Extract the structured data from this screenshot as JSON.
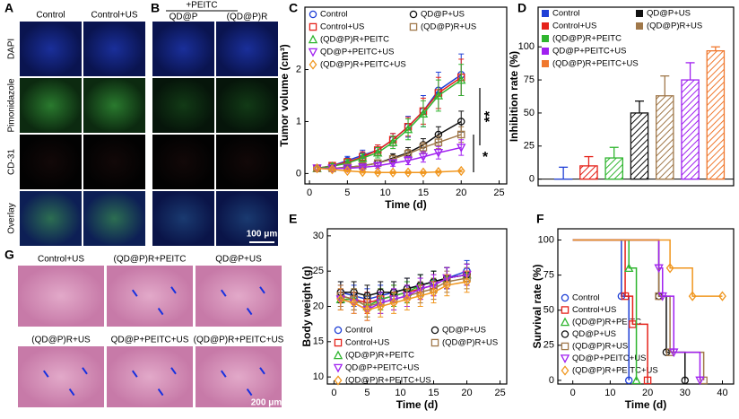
{
  "panel_labels": [
    "A",
    "B",
    "C",
    "D",
    "E",
    "F",
    "G"
  ],
  "panel_a": {
    "columns": [
      "Control",
      "Control+US"
    ],
    "rows": [
      "DAPI",
      "Pimonidazole",
      "CD-31",
      "Overlay"
    ]
  },
  "panel_b": {
    "header": "+PEITC",
    "columns": [
      "QD@P",
      "(QD@P)R"
    ],
    "scale_bar": "100 μm"
  },
  "panel_g": {
    "captions": [
      "Control+US",
      "(QD@P)R+PEITC",
      "QD@P+US",
      "(QD@P)R+US",
      "QD@P+PEITC+US",
      "(QD@P)R+PEITC+US"
    ],
    "scale_bar": "200 μm"
  },
  "chart_data": [
    {
      "type": "line",
      "xlabel": "Time (d)",
      "ylabel": "Tumor volume (cm³)",
      "x": [
        1,
        3,
        5,
        7,
        9,
        11,
        13,
        15,
        17,
        20
      ],
      "xlim": [
        -0.6,
        26
      ],
      "xticks": [
        0,
        5,
        10,
        15,
        20,
        25
      ],
      "ylim": [
        -0.2,
        3.2
      ],
      "yticks": [
        0,
        1,
        2
      ],
      "legend": "upper left",
      "annotations": [
        "**",
        "*"
      ],
      "series": [
        {
          "name": "Control",
          "color": "#1f3fd6",
          "marker": "circle",
          "values": [
            0.1,
            0.15,
            0.25,
            0.35,
            0.45,
            0.65,
            0.9,
            1.2,
            1.6,
            1.9
          ],
          "errors": [
            0.03,
            0.05,
            0.08,
            0.1,
            0.1,
            0.12,
            0.2,
            0.3,
            0.35,
            0.4
          ]
        },
        {
          "name": "Control+US",
          "color": "#e5221a",
          "marker": "square",
          "values": [
            0.1,
            0.15,
            0.22,
            0.32,
            0.45,
            0.65,
            0.9,
            1.2,
            1.55,
            1.85
          ],
          "errors": [
            0.03,
            0.05,
            0.07,
            0.1,
            0.1,
            0.12,
            0.18,
            0.25,
            0.3,
            0.35
          ]
        },
        {
          "name": "(QD@P)R+PEITC",
          "color": "#2fb52f",
          "marker": "triangle",
          "values": [
            0.1,
            0.14,
            0.2,
            0.3,
            0.4,
            0.6,
            0.85,
            1.15,
            1.5,
            1.8
          ],
          "errors": [
            0.03,
            0.05,
            0.07,
            0.08,
            0.1,
            0.12,
            0.2,
            0.25,
            0.3,
            0.3
          ]
        },
        {
          "name": "QD@P+US",
          "color": "#111111",
          "marker": "circle",
          "values": [
            0.1,
            0.1,
            0.12,
            0.15,
            0.2,
            0.3,
            0.4,
            0.55,
            0.75,
            1.0
          ],
          "errors": [
            0.03,
            0.03,
            0.04,
            0.05,
            0.06,
            0.08,
            0.1,
            0.12,
            0.15,
            0.2
          ]
        },
        {
          "name": "(QD@P)R+US",
          "color": "#a0784a",
          "marker": "square",
          "values": [
            0.1,
            0.1,
            0.12,
            0.15,
            0.2,
            0.28,
            0.38,
            0.5,
            0.6,
            0.75
          ],
          "errors": [
            0.03,
            0.03,
            0.04,
            0.05,
            0.06,
            0.07,
            0.08,
            0.1,
            0.12,
            0.15
          ]
        },
        {
          "name": "QD@P+PEITC+US",
          "color": "#a020f0",
          "marker": "triangle-down",
          "values": [
            0.1,
            0.1,
            0.1,
            0.12,
            0.15,
            0.2,
            0.25,
            0.32,
            0.4,
            0.5
          ],
          "errors": [
            0.03,
            0.03,
            0.03,
            0.04,
            0.05,
            0.06,
            0.08,
            0.1,
            0.12,
            0.15
          ]
        },
        {
          "name": "(QD@P)R+PEITC+US",
          "color": "#f0961e",
          "marker": "diamond",
          "values": [
            0.1,
            0.08,
            0.05,
            0.03,
            0.02,
            0.02,
            0.02,
            0.02,
            0.03,
            0.05
          ],
          "errors": [
            0.03,
            0.03,
            0.02,
            0.02,
            0.02,
            0.02,
            0.02,
            0.02,
            0.02,
            0.02
          ]
        }
      ]
    },
    {
      "type": "bar",
      "ylabel": "Inhibition rate (%)",
      "categories": [
        "Control",
        "Control+US",
        "(QD@P)R+PEITC",
        "QD@P+US",
        "(QD@P)R+US",
        "QD@P+PEITC+US",
        "(QD@P)R+PEITC+US"
      ],
      "values": [
        0,
        10,
        16,
        50,
        63,
        75,
        97
      ],
      "errors": [
        9,
        7,
        8,
        9,
        15,
        13,
        3
      ],
      "colors": [
        "#1f3fd6",
        "#e5221a",
        "#2fb52f",
        "#111111",
        "#a0784a",
        "#a020f0",
        "#f0782e"
      ],
      "hatch": true,
      "ylim": [
        -5,
        130
      ],
      "yticks": [
        0,
        25,
        50,
        75,
        100
      ],
      "legend": "upper left"
    },
    {
      "type": "line",
      "xlabel": "Time (d)",
      "ylabel": "Body weight (g)",
      "x": [
        1,
        3,
        5,
        7,
        9,
        11,
        13,
        15,
        17,
        20
      ],
      "xlim": [
        -1,
        26
      ],
      "xticks": [
        0,
        5,
        10,
        15,
        20,
        25
      ],
      "ylim": [
        9,
        31
      ],
      "yticks": [
        10,
        15,
        20,
        25,
        30
      ],
      "legend": "lower left",
      "series": [
        {
          "name": "Control",
          "color": "#1f3fd6",
          "marker": "circle",
          "values": [
            22,
            21.5,
            21,
            21.5,
            22,
            22.5,
            23,
            23.5,
            24,
            25
          ],
          "errors": [
            1.5,
            1.5,
            1.5,
            1.5,
            1.5,
            1.5,
            1.5,
            1.5,
            1.5,
            1.5
          ]
        },
        {
          "name": "Control+US",
          "color": "#e5221a",
          "marker": "square",
          "values": [
            21.5,
            21,
            20.5,
            21,
            21.5,
            22,
            22.5,
            23,
            24,
            24.5
          ],
          "errors": [
            1.5,
            1.5,
            1.5,
            1.5,
            1.5,
            1.5,
            1.5,
            1.5,
            1.5,
            1.5
          ]
        },
        {
          "name": "(QD@P)R+PEITC",
          "color": "#2fb52f",
          "marker": "triangle",
          "values": [
            21,
            21,
            20,
            21,
            21.5,
            22,
            23,
            23.5,
            24,
            24.5
          ],
          "errors": [
            1.5,
            1.5,
            1.5,
            1.5,
            1.5,
            1.5,
            1.5,
            1.5,
            1.5,
            1.5
          ]
        },
        {
          "name": "QD@P+US",
          "color": "#111111",
          "marker": "circle",
          "values": [
            22,
            22,
            21.5,
            22,
            22,
            22.5,
            23,
            23.5,
            24,
            24.5
          ],
          "errors": [
            1.5,
            1.5,
            1.5,
            1.5,
            1.5,
            1.5,
            1.5,
            1.5,
            1.5,
            1.5
          ]
        },
        {
          "name": "(QD@P)R+US",
          "color": "#a0784a",
          "marker": "square",
          "values": [
            21.5,
            21,
            20,
            20.5,
            21,
            21.5,
            22,
            22.5,
            23.5,
            24
          ],
          "errors": [
            1.5,
            1.5,
            1.5,
            1.5,
            1.5,
            1.5,
            1.5,
            1.5,
            1.5,
            1.5
          ]
        },
        {
          "name": "QD@P+PEITC+US",
          "color": "#a020f0",
          "marker": "triangle-down",
          "values": [
            21,
            20.5,
            19.5,
            20.5,
            21,
            21.5,
            22.5,
            23,
            24,
            24.5
          ],
          "errors": [
            1.5,
            1.5,
            1.5,
            1.5,
            1.5,
            1.5,
            1.5,
            1.5,
            1.5,
            1.5
          ]
        },
        {
          "name": "(QD@P)R+PEITC+US",
          "color": "#f0961e",
          "marker": "diamond",
          "values": [
            21,
            20.5,
            19.5,
            20,
            20.5,
            21,
            21.5,
            22,
            23,
            23.5
          ],
          "errors": [
            1.5,
            1.5,
            1.5,
            1.5,
            1.5,
            1.5,
            1.5,
            1.5,
            1.5,
            1.5
          ]
        }
      ]
    },
    {
      "type": "line",
      "drawstyle": "steps-post",
      "xlabel": "Time (d)",
      "ylabel": "Survival rate (%)",
      "xlim": [
        -4,
        43
      ],
      "xticks": [
        0,
        10,
        20,
        30,
        40
      ],
      "ylim": [
        -2.6,
        108
      ],
      "yticks": [
        0,
        25,
        50,
        75,
        100
      ],
      "legend": "lower left",
      "series": [
        {
          "name": "Control",
          "color": "#1f3fd6",
          "marker": "circle",
          "x": [
            0,
            13,
            15
          ],
          "values": [
            100,
            60,
            0
          ]
        },
        {
          "name": "Control+US",
          "color": "#e5221a",
          "marker": "square",
          "x": [
            0,
            14,
            16,
            20
          ],
          "values": [
            100,
            60,
            40,
            0
          ]
        },
        {
          "name": "(QD@P)R+PEITC",
          "color": "#2fb52f",
          "marker": "triangle",
          "x": [
            0,
            15,
            17
          ],
          "values": [
            100,
            80,
            0
          ]
        },
        {
          "name": "QD@P+US",
          "color": "#111111",
          "marker": "circle",
          "x": [
            0,
            23,
            25,
            30
          ],
          "values": [
            100,
            60,
            20,
            0
          ]
        },
        {
          "name": "(QD@P)R+US",
          "color": "#a0784a",
          "marker": "square",
          "x": [
            0,
            23,
            26,
            35
          ],
          "values": [
            100,
            60,
            20,
            0
          ]
        },
        {
          "name": "QD@P+PEITC+US",
          "color": "#a020f0",
          "marker": "triangle-down",
          "x": [
            0,
            23,
            24,
            27,
            34
          ],
          "values": [
            100,
            80,
            60,
            20,
            0
          ]
        },
        {
          "name": "(QD@P)R+PEITC+US",
          "color": "#f0961e",
          "marker": "diamond",
          "x": [
            0,
            26,
            32,
            40
          ],
          "values": [
            100,
            80,
            60,
            60
          ]
        }
      ]
    }
  ]
}
